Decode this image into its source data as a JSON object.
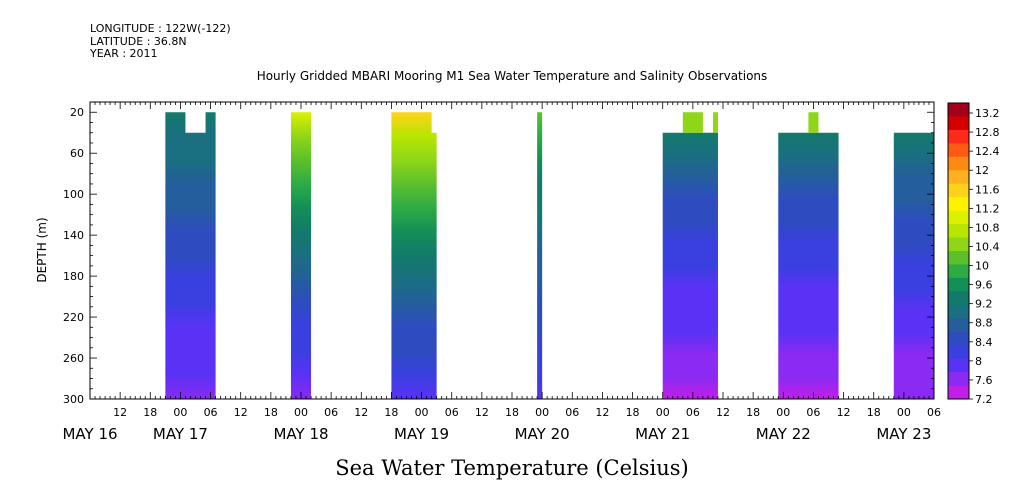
{
  "header": {
    "longitude": "LONGITUDE : 122W(-122)",
    "latitude": "LATITUDE : 36.8N",
    "year": "YEAR : 2011"
  },
  "chart_data": {
    "type": "heatmap",
    "title": "Hourly Gridded MBARI Mooring M1 Sea Water Temperature and Salinity Observations",
    "xlabel": "",
    "ylabel": "DEPTH (m)",
    "units_label": "Sea Water Temperature (Celsius)",
    "y_ticks": [
      20,
      60,
      100,
      140,
      180,
      220,
      260,
      300
    ],
    "y_range": [
      10,
      300
    ],
    "y_inverted": true,
    "x_range_hours_from_may16_00": [
      6,
      174
    ],
    "x_tick_labels": [
      {
        "h": 12,
        "label": "12"
      },
      {
        "h": 18,
        "label": "18"
      },
      {
        "h": 24,
        "label": "00"
      },
      {
        "h": 30,
        "label": "06"
      },
      {
        "h": 36,
        "label": "12"
      },
      {
        "h": 42,
        "label": "18"
      },
      {
        "h": 48,
        "label": "00"
      },
      {
        "h": 54,
        "label": "06"
      },
      {
        "h": 60,
        "label": "12"
      },
      {
        "h": 66,
        "label": "18"
      },
      {
        "h": 72,
        "label": "00"
      },
      {
        "h": 78,
        "label": "06"
      },
      {
        "h": 84,
        "label": "12"
      },
      {
        "h": 90,
        "label": "18"
      },
      {
        "h": 96,
        "label": "00"
      },
      {
        "h": 102,
        "label": "06"
      },
      {
        "h": 108,
        "label": "12"
      },
      {
        "h": 114,
        "label": "18"
      },
      {
        "h": 120,
        "label": "00"
      },
      {
        "h": 126,
        "label": "06"
      },
      {
        "h": 132,
        "label": "12"
      },
      {
        "h": 138,
        "label": "18"
      },
      {
        "h": 144,
        "label": "00"
      },
      {
        "h": 150,
        "label": "06"
      },
      {
        "h": 156,
        "label": "12"
      },
      {
        "h": 162,
        "label": "18"
      },
      {
        "h": 168,
        "label": "00"
      },
      {
        "h": 174,
        "label": "06"
      }
    ],
    "day_labels": [
      {
        "h": 6,
        "label": "MAY 16"
      },
      {
        "h": 24,
        "label": "MAY 17"
      },
      {
        "h": 48,
        "label": "MAY 18"
      },
      {
        "h": 72,
        "label": "MAY 19"
      },
      {
        "h": 96,
        "label": "MAY 20"
      },
      {
        "h": 120,
        "label": "MAY 21"
      },
      {
        "h": 144,
        "label": "MAY 22"
      },
      {
        "h": 168,
        "label": "MAY 23"
      }
    ],
    "colorbar": {
      "min": 7.2,
      "max": 13.2,
      "labels": [
        "13.2",
        "12.8",
        "12.4",
        "12",
        "11.6",
        "11.2",
        "10.8",
        "10.4",
        "10",
        "9.6",
        "9.2",
        "8.8",
        "8.4",
        "8",
        "7.6",
        "7.2"
      ],
      "colors": [
        "#a3001a",
        "#d40000",
        "#ff2a1a",
        "#ff5a12",
        "#ff8a12",
        "#ffb020",
        "#ffd21a",
        "#fff200",
        "#dcf000",
        "#b8e600",
        "#90d618",
        "#5cc02c",
        "#2eab45",
        "#138f58",
        "#127a6a",
        "#1a6f80",
        "#245e9c",
        "#2e4cc0",
        "#3a3fe0",
        "#5a32f5",
        "#8a2af2",
        "#c11fe8"
      ]
    },
    "data_blocks": [
      {
        "start_h": 21,
        "end_h": 31,
        "top_depth": 20,
        "bottom_depth": 300,
        "notch": {
          "start_h": 25,
          "end_h": 29,
          "depth": 40
        },
        "surface_temp": 9.3,
        "bottom_temp": 7.6
      },
      {
        "start_h": 46,
        "end_h": 50,
        "top_depth": 20,
        "bottom_depth": 300,
        "surface_temp": 11.0,
        "bottom_temp": 7.5
      },
      {
        "start_h": 66,
        "end_h": 75,
        "top_depth": 20,
        "bottom_depth": 300,
        "surface_temp": 11.4,
        "bottom_temp": 7.8,
        "step": {
          "start_h": 74,
          "depth": 40
        }
      },
      {
        "start_h": 95,
        "end_h": 96,
        "top_depth": 20,
        "bottom_depth": 300,
        "surface_temp": 10.2,
        "bottom_temp": 7.8
      },
      {
        "start_h": 120,
        "end_h": 131,
        "top_depth": 40,
        "bottom_depth": 300,
        "surface_temp": 9.2,
        "bottom_temp": 7.3,
        "bumps": [
          {
            "start_h": 124,
            "end_h": 128,
            "depth": 20
          },
          {
            "start_h": 130,
            "end_h": 131,
            "depth": 20
          }
        ]
      },
      {
        "start_h": 143,
        "end_h": 155,
        "top_depth": 40,
        "bottom_depth": 300,
        "surface_temp": 9.2,
        "bottom_temp": 7.3,
        "bumps": [
          {
            "start_h": 149,
            "end_h": 151,
            "depth": 20
          }
        ]
      },
      {
        "start_h": 166,
        "end_h": 174,
        "top_depth": 40,
        "bottom_depth": 300,
        "surface_temp": 9.2,
        "bottom_temp": 7.4
      }
    ]
  }
}
